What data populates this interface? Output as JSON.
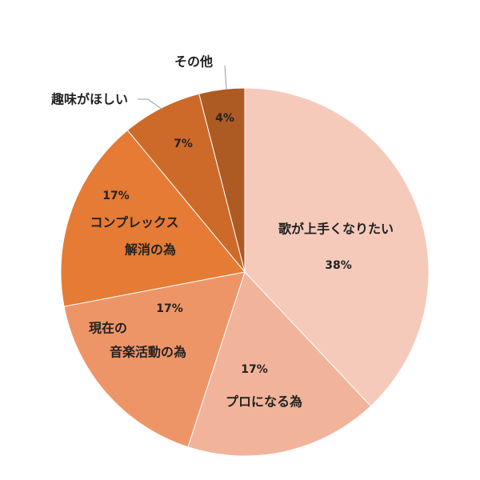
{
  "chart_data": {
    "type": "pie",
    "labels": [
      [
        "歌が上手くなりたい"
      ],
      [
        "プロになる為"
      ],
      [
        "現在の",
        "音楽活動の為"
      ],
      [
        "コンプレックス",
        "解消の為"
      ],
      [
        "趣味がほしい"
      ],
      [
        "その他"
      ]
    ],
    "values": [
      38,
      17,
      17,
      17,
      7,
      4
    ],
    "value_labels": [
      "38%",
      "17%",
      "17%",
      "17%",
      "7%",
      "4%"
    ],
    "colors": [
      "#f6cabb",
      "#f2b39b",
      "#ee9568",
      "#e57b35",
      "#cd6a29",
      "#ad5a23"
    ]
  }
}
